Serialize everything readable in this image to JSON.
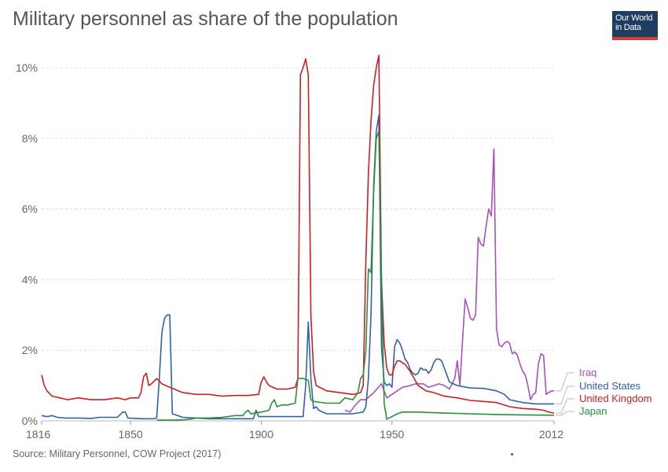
{
  "title": "Military personnel as share of the population",
  "logo": {
    "line1": "Our World",
    "line2": "in Data"
  },
  "source": "Source: Military Personnel, COW Project (2017)",
  "chart_data": {
    "type": "line",
    "title": "Military personnel as share of the population",
    "xlabel": "",
    "ylabel": "",
    "xlim": [
      1816,
      2012
    ],
    "ylim": [
      0,
      10
    ],
    "x_ticks": [
      {
        "value": 1816,
        "label": "1816"
      },
      {
        "value": 1850,
        "label": "1850"
      },
      {
        "value": 1900,
        "label": "1900"
      },
      {
        "value": 1950,
        "label": "1950"
      },
      {
        "value": 2012,
        "label": "2012"
      }
    ],
    "y_ticks": [
      {
        "value": 0,
        "label": "0%"
      },
      {
        "value": 2,
        "label": "2%"
      },
      {
        "value": 4,
        "label": "4%"
      },
      {
        "value": 6,
        "label": "6%"
      },
      {
        "value": 8,
        "label": "8%"
      },
      {
        "value": 10,
        "label": "10%"
      }
    ],
    "grid": true,
    "legend_placement": "right",
    "series": [
      {
        "name": "Iraq",
        "color": "#a652ba",
        "points": [
          [
            1932,
            0.3
          ],
          [
            1934,
            0.25
          ],
          [
            1936,
            0.45
          ],
          [
            1938,
            0.6
          ],
          [
            1940,
            0.6
          ],
          [
            1943,
            0.8
          ],
          [
            1946,
            1.05
          ],
          [
            1948,
            0.65
          ],
          [
            1951,
            0.8
          ],
          [
            1954,
            0.95
          ],
          [
            1957,
            1.0
          ],
          [
            1959,
            1.05
          ],
          [
            1962,
            1.05
          ],
          [
            1964,
            0.95
          ],
          [
            1966,
            1.0
          ],
          [
            1968,
            1.05
          ],
          [
            1970,
            1.0
          ],
          [
            1972,
            0.9
          ],
          [
            1974,
            1.2
          ],
          [
            1975,
            1.7
          ],
          [
            1976,
            1.0
          ],
          [
            1977,
            2.3
          ],
          [
            1978,
            3.45
          ],
          [
            1979,
            3.2
          ],
          [
            1980,
            2.9
          ],
          [
            1981,
            2.85
          ],
          [
            1982,
            3.0
          ],
          [
            1983,
            5.2
          ],
          [
            1984,
            5.0
          ],
          [
            1985,
            4.95
          ],
          [
            1986,
            5.5
          ],
          [
            1987,
            6.0
          ],
          [
            1988,
            5.8
          ],
          [
            1989,
            7.7
          ],
          [
            1990,
            2.6
          ],
          [
            1991,
            2.15
          ],
          [
            1992,
            2.1
          ],
          [
            1993,
            2.2
          ],
          [
            1994,
            2.25
          ],
          [
            1995,
            2.2
          ],
          [
            1996,
            1.9
          ],
          [
            1997,
            1.95
          ],
          [
            1998,
            1.85
          ],
          [
            1999,
            1.6
          ],
          [
            2000,
            1.4
          ],
          [
            2001,
            1.3
          ],
          [
            2002,
            1.0
          ],
          [
            2003,
            0.6
          ],
          [
            2004,
            0.75
          ],
          [
            2005,
            0.8
          ],
          [
            2006,
            1.6
          ],
          [
            2007,
            1.9
          ],
          [
            2008,
            1.85
          ],
          [
            2009,
            0.75
          ],
          [
            2010,
            0.8
          ],
          [
            2011,
            0.85
          ],
          [
            2012,
            0.85
          ]
        ]
      },
      {
        "name": "United States",
        "color": "#3360a9",
        "points": [
          [
            1816,
            0.15
          ],
          [
            1818,
            0.12
          ],
          [
            1820,
            0.15
          ],
          [
            1822,
            0.1
          ],
          [
            1825,
            0.08
          ],
          [
            1830,
            0.08
          ],
          [
            1835,
            0.07
          ],
          [
            1838,
            0.1
          ],
          [
            1840,
            0.1
          ],
          [
            1845,
            0.1
          ],
          [
            1847,
            0.25
          ],
          [
            1848,
            0.25
          ],
          [
            1849,
            0.08
          ],
          [
            1855,
            0.06
          ],
          [
            1859,
            0.06
          ],
          [
            1860,
            0.08
          ],
          [
            1861,
            1.2
          ],
          [
            1862,
            2.5
          ],
          [
            1863,
            2.9
          ],
          [
            1864,
            3.0
          ],
          [
            1865,
            3.0
          ],
          [
            1866,
            0.2
          ],
          [
            1868,
            0.15
          ],
          [
            1870,
            0.1
          ],
          [
            1880,
            0.06
          ],
          [
            1890,
            0.06
          ],
          [
            1897,
            0.06
          ],
          [
            1898,
            0.3
          ],
          [
            1899,
            0.12
          ],
          [
            1900,
            0.12
          ],
          [
            1910,
            0.12
          ],
          [
            1916,
            0.12
          ],
          [
            1917,
            1.0
          ],
          [
            1918,
            2.8
          ],
          [
            1919,
            1.2
          ],
          [
            1920,
            0.35
          ],
          [
            1921,
            0.4
          ],
          [
            1922,
            0.3
          ],
          [
            1925,
            0.2
          ],
          [
            1930,
            0.2
          ],
          [
            1935,
            0.2
          ],
          [
            1939,
            0.25
          ],
          [
            1940,
            0.4
          ],
          [
            1941,
            1.2
          ],
          [
            1942,
            3.0
          ],
          [
            1943,
            6.7
          ],
          [
            1944,
            8.2
          ],
          [
            1945,
            8.65
          ],
          [
            1946,
            2.1
          ],
          [
            1947,
            1.1
          ],
          [
            1948,
            1.0
          ],
          [
            1949,
            1.05
          ],
          [
            1950,
            0.95
          ],
          [
            1951,
            2.1
          ],
          [
            1952,
            2.3
          ],
          [
            1953,
            2.2
          ],
          [
            1954,
            2.0
          ],
          [
            1955,
            1.75
          ],
          [
            1956,
            1.65
          ],
          [
            1957,
            1.45
          ],
          [
            1958,
            1.35
          ],
          [
            1959,
            1.3
          ],
          [
            1960,
            1.35
          ],
          [
            1961,
            1.5
          ],
          [
            1962,
            1.45
          ],
          [
            1963,
            1.45
          ],
          [
            1964,
            1.35
          ],
          [
            1965,
            1.45
          ],
          [
            1966,
            1.65
          ],
          [
            1967,
            1.75
          ],
          [
            1968,
            1.75
          ],
          [
            1969,
            1.7
          ],
          [
            1970,
            1.5
          ],
          [
            1971,
            1.3
          ],
          [
            1972,
            1.1
          ],
          [
            1975,
            1.0
          ],
          [
            1980,
            0.93
          ],
          [
            1985,
            0.92
          ],
          [
            1990,
            0.85
          ],
          [
            1993,
            0.75
          ],
          [
            1995,
            0.6
          ],
          [
            2000,
            0.52
          ],
          [
            2005,
            0.48
          ],
          [
            2012,
            0.48
          ]
        ]
      },
      {
        "name": "United Kingdom",
        "color": "#cc1f24",
        "points": [
          [
            1816,
            1.3
          ],
          [
            1817,
            1.0
          ],
          [
            1818,
            0.85
          ],
          [
            1820,
            0.7
          ],
          [
            1823,
            0.65
          ],
          [
            1826,
            0.6
          ],
          [
            1830,
            0.65
          ],
          [
            1835,
            0.6
          ],
          [
            1840,
            0.6
          ],
          [
            1845,
            0.65
          ],
          [
            1848,
            0.6
          ],
          [
            1850,
            0.65
          ],
          [
            1853,
            0.65
          ],
          [
            1854,
            0.8
          ],
          [
            1855,
            1.25
          ],
          [
            1856,
            1.35
          ],
          [
            1857,
            1.0
          ],
          [
            1858,
            1.05
          ],
          [
            1860,
            1.2
          ],
          [
            1862,
            1.05
          ],
          [
            1865,
            0.95
          ],
          [
            1870,
            0.8
          ],
          [
            1875,
            0.75
          ],
          [
            1880,
            0.75
          ],
          [
            1885,
            0.7
          ],
          [
            1890,
            0.72
          ],
          [
            1895,
            0.72
          ],
          [
            1899,
            0.75
          ],
          [
            1900,
            1.1
          ],
          [
            1901,
            1.25
          ],
          [
            1902,
            1.1
          ],
          [
            1903,
            1.0
          ],
          [
            1906,
            0.9
          ],
          [
            1910,
            0.9
          ],
          [
            1913,
            0.95
          ],
          [
            1914,
            1.2
          ],
          [
            1915,
            9.8
          ],
          [
            1916,
            10.0
          ],
          [
            1917,
            10.25
          ],
          [
            1918,
            9.8
          ],
          [
            1919,
            3.0
          ],
          [
            1920,
            1.4
          ],
          [
            1921,
            1.0
          ],
          [
            1925,
            0.85
          ],
          [
            1930,
            0.8
          ],
          [
            1935,
            0.75
          ],
          [
            1938,
            0.8
          ],
          [
            1939,
            1.0
          ],
          [
            1940,
            4.5
          ],
          [
            1941,
            7.0
          ],
          [
            1942,
            8.5
          ],
          [
            1943,
            9.5
          ],
          [
            1944,
            10.0
          ],
          [
            1945,
            10.35
          ],
          [
            1946,
            4.0
          ],
          [
            1947,
            2.2
          ],
          [
            1948,
            1.5
          ],
          [
            1949,
            1.3
          ],
          [
            1950,
            1.3
          ],
          [
            1951,
            1.55
          ],
          [
            1952,
            1.7
          ],
          [
            1953,
            1.7
          ],
          [
            1955,
            1.6
          ],
          [
            1957,
            1.4
          ],
          [
            1960,
            1.0
          ],
          [
            1963,
            0.85
          ],
          [
            1966,
            0.8
          ],
          [
            1970,
            0.7
          ],
          [
            1975,
            0.65
          ],
          [
            1980,
            0.58
          ],
          [
            1985,
            0.55
          ],
          [
            1990,
            0.52
          ],
          [
            1995,
            0.4
          ],
          [
            2000,
            0.35
          ],
          [
            2005,
            0.33
          ],
          [
            2008,
            0.3
          ],
          [
            2010,
            0.25
          ],
          [
            2012,
            0.22
          ]
        ]
      },
      {
        "name": "Japan",
        "color": "#2a8f3c",
        "points": [
          [
            1860,
            0.02
          ],
          [
            1865,
            0.02
          ],
          [
            1870,
            0.03
          ],
          [
            1873,
            0.05
          ],
          [
            1875,
            0.08
          ],
          [
            1880,
            0.08
          ],
          [
            1885,
            0.1
          ],
          [
            1890,
            0.15
          ],
          [
            1893,
            0.15
          ],
          [
            1894,
            0.25
          ],
          [
            1895,
            0.3
          ],
          [
            1896,
            0.2
          ],
          [
            1900,
            0.25
          ],
          [
            1903,
            0.3
          ],
          [
            1904,
            0.5
          ],
          [
            1905,
            0.6
          ],
          [
            1906,
            0.4
          ],
          [
            1908,
            0.45
          ],
          [
            1910,
            0.45
          ],
          [
            1913,
            0.5
          ],
          [
            1914,
            1.2
          ],
          [
            1916,
            1.2
          ],
          [
            1918,
            1.15
          ],
          [
            1919,
            0.6
          ],
          [
            1920,
            0.55
          ],
          [
            1925,
            0.5
          ],
          [
            1930,
            0.5
          ],
          [
            1932,
            0.65
          ],
          [
            1935,
            0.6
          ],
          [
            1937,
            0.8
          ],
          [
            1938,
            1.2
          ],
          [
            1939,
            1.3
          ],
          [
            1940,
            2.0
          ],
          [
            1941,
            4.3
          ],
          [
            1942,
            4.2
          ],
          [
            1943,
            6.5
          ],
          [
            1944,
            8.0
          ],
          [
            1945,
            8.2
          ],
          [
            1946,
            4.0
          ],
          [
            1947,
            0.5
          ],
          [
            1948,
            0.05
          ],
          [
            1950,
            0.12
          ],
          [
            1952,
            0.2
          ],
          [
            1954,
            0.25
          ],
          [
            1960,
            0.25
          ],
          [
            1970,
            0.22
          ],
          [
            1980,
            0.2
          ],
          [
            1990,
            0.18
          ],
          [
            2000,
            0.17
          ],
          [
            2012,
            0.16
          ]
        ]
      }
    ]
  }
}
